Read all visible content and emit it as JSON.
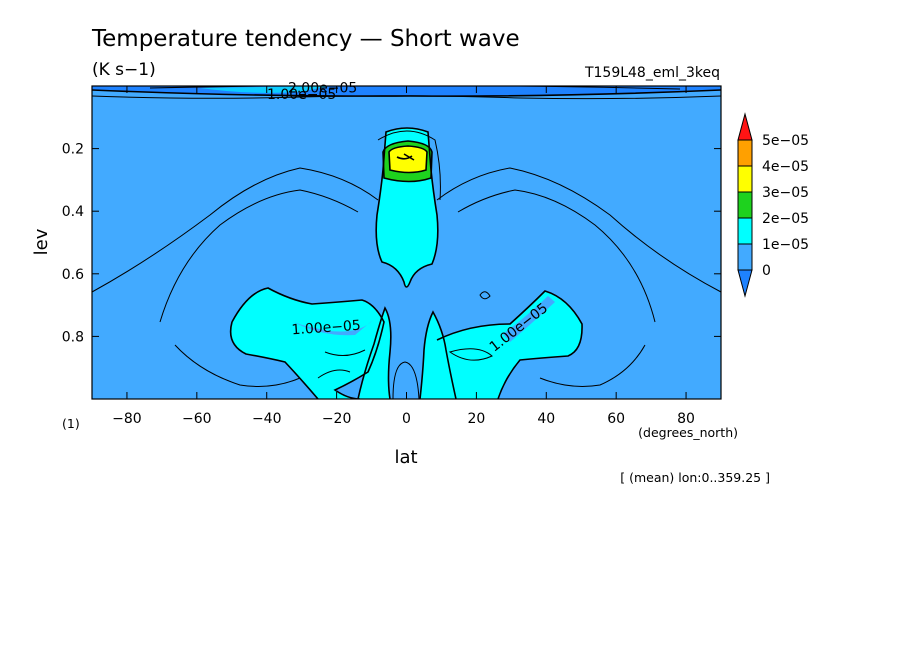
{
  "chart_data": {
    "type": "contour",
    "title": "Temperature tendency — Short wave",
    "units": "(K s−1)",
    "run_name": "T159L48_eml_3keq",
    "xlabel": "lat",
    "x_units": "(degrees_north)",
    "ylabel": "lev",
    "y_units": "(1)",
    "xlim": [
      -90,
      90
    ],
    "ylim": [
      1.0,
      0.0
    ],
    "x_ticks": [
      -80,
      -60,
      -40,
      -20,
      0,
      20,
      40,
      60,
      80
    ],
    "x_tick_labels": [
      "−80",
      "−60",
      "−40",
      "−20",
      "0",
      "20",
      "40",
      "60",
      "80"
    ],
    "y_ticks": [
      0.2,
      0.4,
      0.6,
      0.8
    ],
    "y_tick_labels": [
      "0.2",
      "0.4",
      "0.6",
      "0.8"
    ],
    "colorbar": {
      "levels": [
        0,
        1e-05,
        2e-05,
        3e-05,
        4e-05,
        5e-05
      ],
      "labels": [
        "0",
        "1e−05",
        "2e−05",
        "3e−05",
        "4e−05",
        "5e−05"
      ],
      "colors": [
        "#1e82ff",
        "#42aaff",
        "#00ffff",
        "#1ed21e",
        "#ffff00",
        "#ffa000",
        "#ff1414"
      ]
    },
    "contour_labels": [
      {
        "text": "1.00e−05",
        "lat": -23,
        "lev": 0.77,
        "angle": -4
      },
      {
        "text": "1.00e−05",
        "lat": 32,
        "lev": 0.77,
        "angle": -38
      },
      {
        "text": "1.00e−05",
        "lat": -30,
        "lev": 0.025,
        "angle": 0
      },
      {
        "text": "2.00e−05",
        "lat": -24,
        "lev": 0.005,
        "angle": 0
      }
    ],
    "annotation": "[ (mean) lon:0..359.25 ]"
  }
}
